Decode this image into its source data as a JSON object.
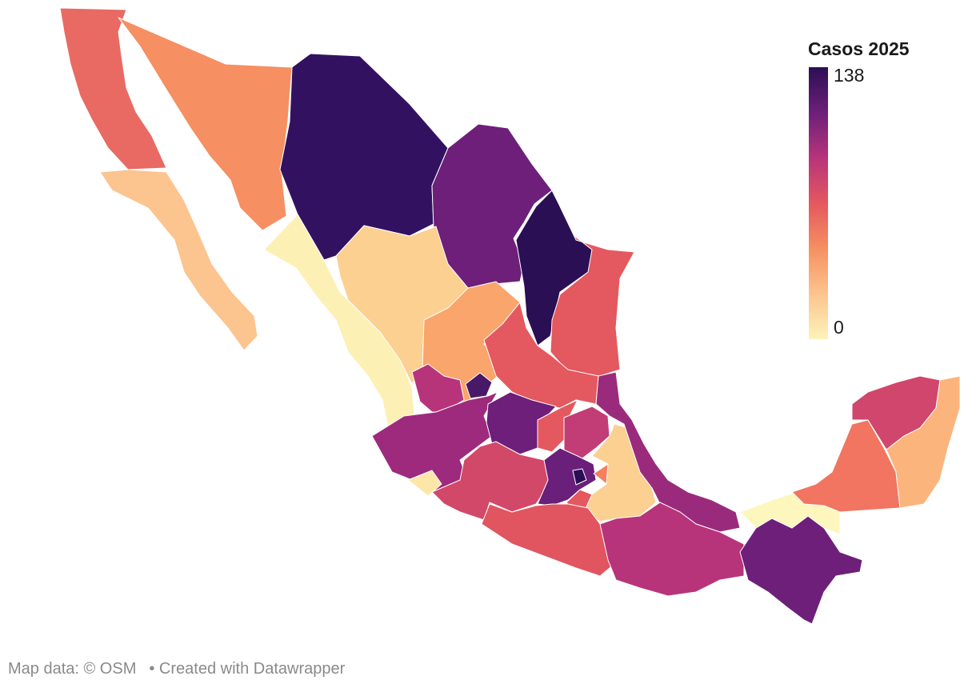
{
  "legend": {
    "title": "Casos 2025",
    "max_label": "138",
    "min_label": "0",
    "min": 0,
    "max": 138,
    "colors": [
      "#fdf3b9",
      "#fcc48e",
      "#f68f62",
      "#e4585f",
      "#b7347a",
      "#6d1f7a",
      "#2b0f54"
    ]
  },
  "states": [
    {
      "name": "Baja California",
      "color": "#e86a63"
    },
    {
      "name": "Baja California Sur",
      "color": "#fcc48e"
    },
    {
      "name": "Sonora",
      "color": "#f68f62"
    },
    {
      "name": "Chihuahua",
      "color": "#321260"
    },
    {
      "name": "Coahuila",
      "color": "#6d1f7a"
    },
    {
      "name": "Nuevo León",
      "color": "#2b0f54"
    },
    {
      "name": "Tamaulipas",
      "color": "#e4585f"
    },
    {
      "name": "Sinaloa",
      "color": "#fdf0b5"
    },
    {
      "name": "Durango",
      "color": "#fcd091"
    },
    {
      "name": "Zacatecas",
      "color": "#f9a56b"
    },
    {
      "name": "San Luis Potosí",
      "color": "#e4585f"
    },
    {
      "name": "Nayarit",
      "color": "#b7347a"
    },
    {
      "name": "Aguascalientes",
      "color": "#4a1868"
    },
    {
      "name": "Jalisco",
      "color": "#9d2a7c"
    },
    {
      "name": "Colima",
      "color": "#fde7a8"
    },
    {
      "name": "Guanajuato",
      "color": "#6d1f7a"
    },
    {
      "name": "Querétaro",
      "color": "#e4585f"
    },
    {
      "name": "Hidalgo",
      "color": "#c23d75"
    },
    {
      "name": "Michoacán",
      "color": "#d24868"
    },
    {
      "name": "Estado de México",
      "color": "#6a1f7a"
    },
    {
      "name": "Ciudad de México",
      "color": "#2b0f54"
    },
    {
      "name": "Morelos",
      "color": "#e4585f"
    },
    {
      "name": "Tlaxcala",
      "color": "#f5805f"
    },
    {
      "name": "Puebla",
      "color": "#fcd091"
    },
    {
      "name": "Veracruz",
      "color": "#9a2b7c"
    },
    {
      "name": "Guerrero",
      "color": "#e05560"
    },
    {
      "name": "Oaxaca",
      "color": "#b7347a"
    },
    {
      "name": "Chiapas",
      "color": "#6d1f7a"
    },
    {
      "name": "Tabasco",
      "color": "#fef7bd"
    },
    {
      "name": "Campeche",
      "color": "#f17560"
    },
    {
      "name": "Yucatán",
      "color": "#d0466c"
    },
    {
      "name": "Quintana Roo",
      "color": "#fbb47c"
    }
  ],
  "footer": {
    "credit": "Map data: © OSM",
    "created": "• Created with Datawrapper"
  }
}
